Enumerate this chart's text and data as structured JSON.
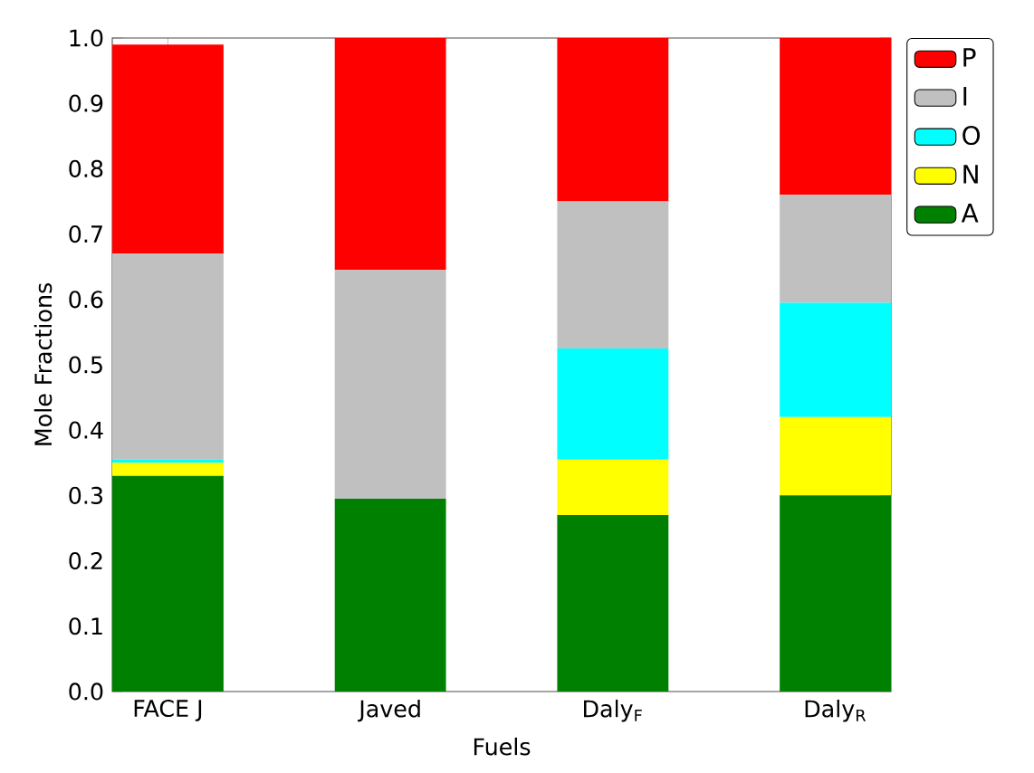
{
  "chart_data": {
    "type": "bar",
    "stacked": true,
    "xlabel": "Fuels",
    "ylabel": "Mole Fractions",
    "categories": [
      "FACE J",
      "Javed",
      "Daly$_{F}$",
      "Daly$_{R}$"
    ],
    "series": [
      {
        "name": "A",
        "color": "#008000",
        "values": [
          0.33,
          0.295,
          0.27,
          0.3
        ]
      },
      {
        "name": "N",
        "color": "#ffff00",
        "values": [
          0.02,
          0,
          0.085,
          0.12
        ]
      },
      {
        "name": "O",
        "color": "#00ffff",
        "values": [
          0.005,
          0,
          0.17,
          0.175
        ]
      },
      {
        "name": "I",
        "color": "#c0c0c0",
        "values": [
          0.315,
          0.35,
          0.225,
          0.165
        ]
      },
      {
        "name": "P",
        "color": "#ff0000",
        "values": [
          0.32,
          0.355,
          0.25,
          0.24
        ]
      }
    ],
    "ylim": [
      0,
      1
    ],
    "yticks": [
      {
        "value": 0,
        "label": "0.0"
      },
      {
        "value": 0.1,
        "label": "0.1"
      },
      {
        "value": 0.2,
        "label": "0.2"
      },
      {
        "value": 0.3,
        "label": "0.3"
      },
      {
        "value": 0.4,
        "label": "0.4"
      },
      {
        "value": 0.5,
        "label": "0.5"
      },
      {
        "value": 0.6,
        "label": "0.6"
      },
      {
        "value": 0.7,
        "label": "0.7"
      },
      {
        "value": 0.8,
        "label": "0.8"
      },
      {
        "value": 0.9,
        "label": "0.9"
      },
      {
        "value": 1,
        "label": "1.0"
      }
    ],
    "legend": "top right"
  }
}
